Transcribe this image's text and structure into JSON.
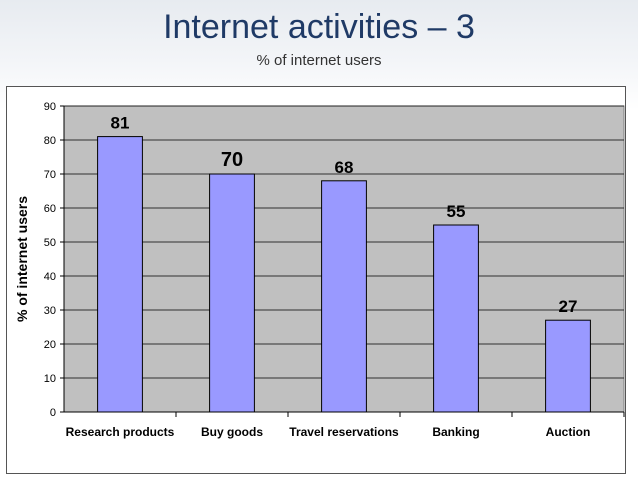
{
  "slide": {
    "title": "Internet activities – 3",
    "subtitle": "% of internet users"
  },
  "chart_data": {
    "type": "bar",
    "categories": [
      "Research products",
      "Buy goods",
      "Travel reservations",
      "Banking",
      "Auction"
    ],
    "values": [
      81,
      70,
      68,
      55,
      27
    ],
    "title": "",
    "xlabel": "",
    "ylabel": "% of internet users",
    "ylim": [
      0,
      90
    ],
    "yticks": [
      0,
      10,
      20,
      30,
      40,
      50,
      60,
      70,
      80,
      90
    ],
    "grid": true,
    "legend": "none",
    "colors": {
      "plot_area": "#c0c0c0",
      "bar_fill": "#9999ff",
      "bar_stroke": "#000000",
      "gridline": "#000000"
    }
  }
}
